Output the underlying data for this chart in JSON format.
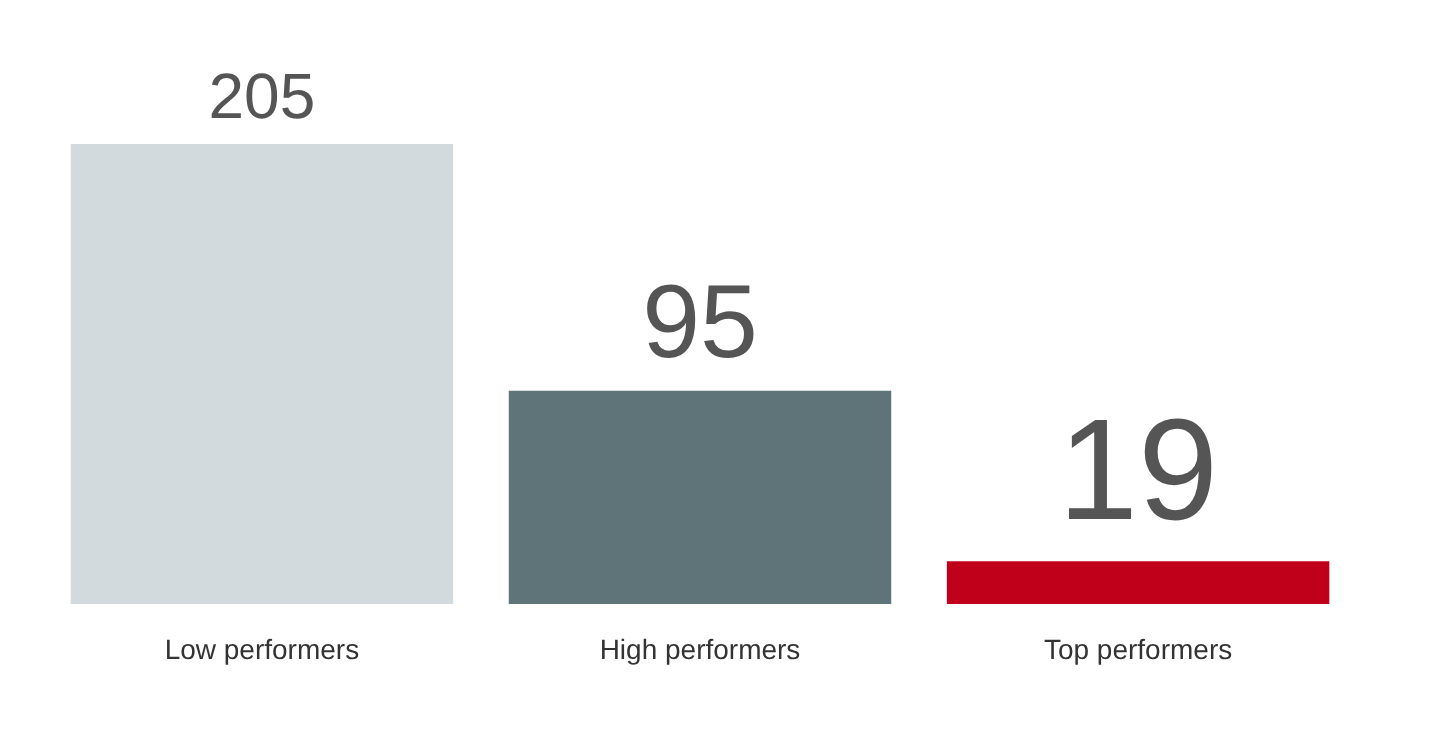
{
  "chart_data": {
    "type": "bar",
    "categories": [
      "Low performers",
      "High performers",
      "Top performers"
    ],
    "values": [
      205,
      95,
      19
    ],
    "colors": [
      "#d3dadd",
      "#5f7478",
      "#c0001a"
    ],
    "ylim": [
      0,
      205
    ],
    "data_labels": true,
    "grid": false,
    "tick_labels": "x"
  }
}
